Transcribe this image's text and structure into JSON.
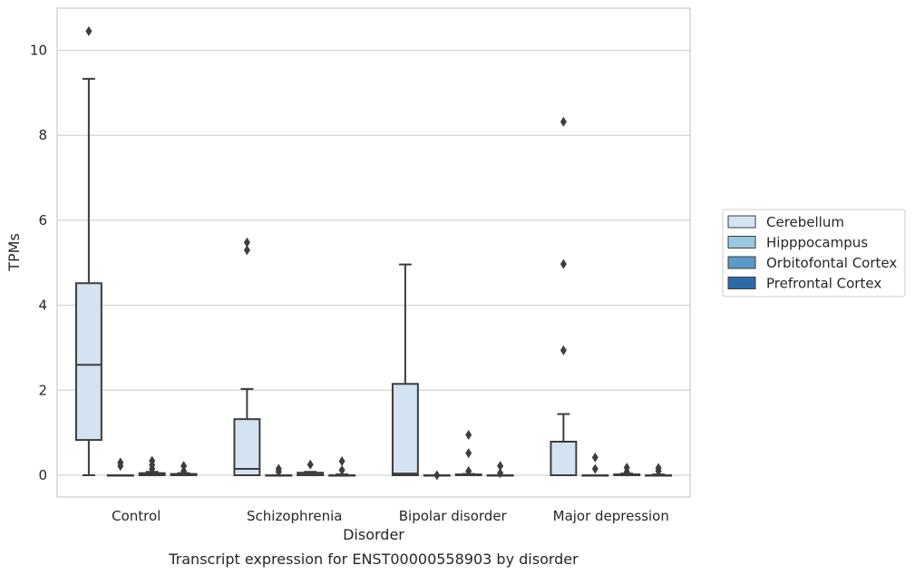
{
  "chart_data": {
    "type": "box",
    "title": "",
    "caption": "Transcript expression for ENST00000558903 by disorder",
    "xlabel": "Disorder",
    "ylabel": "TPMs",
    "ylim": [
      -0.5,
      11.0
    ],
    "yticks": [
      0,
      2,
      4,
      6,
      8,
      10
    ],
    "grid": "horizontal",
    "legend_position": "right",
    "categories": [
      "Control",
      "Schizophrenia",
      "Bipolar disorder",
      "Major depression"
    ],
    "series": [
      {
        "name": "Cerebellum",
        "color": "#d4e3f1",
        "boxes": [
          {
            "min": 0.0,
            "q1": 0.83,
            "median": 2.6,
            "q3": 4.52,
            "max": 9.33,
            "outliers": [
              10.45
            ]
          },
          {
            "min": 0.0,
            "q1": 0.0,
            "median": 0.15,
            "q3": 1.32,
            "max": 2.03,
            "outliers": [
              5.3,
              5.48
            ]
          },
          {
            "min": 0.0,
            "q1": 0.0,
            "median": 0.04,
            "q3": 2.15,
            "max": 4.96,
            "outliers": []
          },
          {
            "min": 0.0,
            "q1": 0.0,
            "median": 0.0,
            "q3": 0.79,
            "max": 1.44,
            "outliers": [
              2.94,
              4.97,
              8.32
            ]
          }
        ]
      },
      {
        "name": "Hipppocampus",
        "color": "#9ac8e0",
        "boxes": [
          {
            "min": 0.0,
            "q1": 0.0,
            "median": 0.0,
            "q3": 0.0,
            "max": 0.0,
            "outliers": [
              0.22,
              0.3
            ]
          },
          {
            "min": 0.0,
            "q1": 0.0,
            "median": 0.0,
            "q3": 0.0,
            "max": 0.0,
            "outliers": [
              0.08,
              0.15
            ]
          },
          {
            "min": 0.0,
            "q1": 0.0,
            "median": 0.0,
            "q3": 0.0,
            "max": 0.0,
            "outliers": [
              0.0
            ]
          },
          {
            "min": 0.0,
            "q1": 0.0,
            "median": 0.0,
            "q3": 0.0,
            "max": 0.0,
            "outliers": [
              0.15,
              0.42
            ]
          }
        ]
      },
      {
        "name": "Orbitofontal Cortex",
        "color": "#5a9bc9",
        "boxes": [
          {
            "min": 0.0,
            "q1": 0.0,
            "median": 0.02,
            "q3": 0.05,
            "max": 0.08,
            "outliers": [
              0.15,
              0.24,
              0.34
            ]
          },
          {
            "min": 0.0,
            "q1": 0.0,
            "median": 0.02,
            "q3": 0.06,
            "max": 0.08,
            "outliers": [
              0.25
            ]
          },
          {
            "min": 0.0,
            "q1": 0.0,
            "median": 0.0,
            "q3": 0.02,
            "max": 0.03,
            "outliers": [
              0.1,
              0.52,
              0.95
            ]
          },
          {
            "min": 0.0,
            "q1": 0.0,
            "median": 0.0,
            "q3": 0.02,
            "max": 0.04,
            "outliers": [
              0.08,
              0.18
            ]
          }
        ]
      },
      {
        "name": "Prefrontal Cortex",
        "color": "#2b6ca8",
        "boxes": [
          {
            "min": 0.0,
            "q1": 0.0,
            "median": 0.0,
            "q3": 0.03,
            "max": 0.05,
            "outliers": [
              0.1,
              0.22
            ]
          },
          {
            "min": 0.0,
            "q1": 0.0,
            "median": 0.0,
            "q3": 0.0,
            "max": 0.02,
            "outliers": [
              0.12,
              0.33
            ]
          },
          {
            "min": 0.0,
            "q1": 0.0,
            "median": 0.0,
            "q3": 0.0,
            "max": 0.0,
            "outliers": [
              0.05,
              0.22
            ]
          },
          {
            "min": 0.0,
            "q1": 0.0,
            "median": 0.0,
            "q3": 0.0,
            "max": 0.02,
            "outliers": [
              0.1,
              0.17
            ]
          }
        ]
      }
    ]
  }
}
